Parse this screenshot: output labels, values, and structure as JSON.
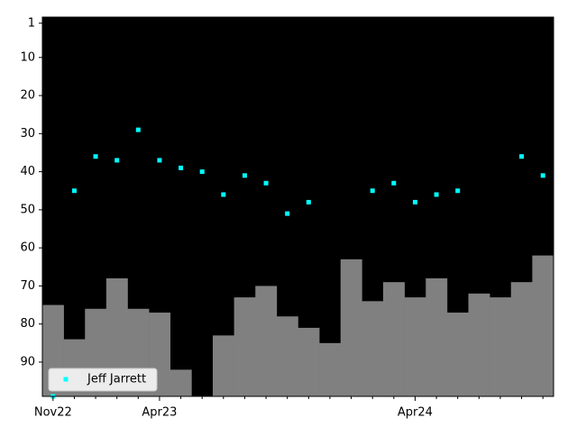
{
  "chart_data": {
    "type": "scatter",
    "categories": [
      "Nov22",
      null,
      null,
      null,
      null,
      "Apr23",
      null,
      null,
      null,
      null,
      null,
      null,
      null,
      null,
      null,
      null,
      null,
      "Apr24",
      null,
      null,
      null,
      null,
      null,
      null
    ],
    "series": [
      {
        "name": "Jeff Jarrett",
        "color": "#00ffff",
        "values": [
          99,
          45,
          36,
          37,
          29,
          37,
          39,
          40,
          46,
          41,
          43,
          51,
          48,
          null,
          null,
          45,
          43,
          48,
          46,
          45,
          null,
          null,
          36,
          41
        ]
      },
      {
        "type": "step-area",
        "color": "#808080",
        "values": [
          75,
          84,
          76,
          68,
          76,
          77,
          92,
          null,
          83,
          73,
          70,
          78,
          81,
          85,
          63,
          74,
          69,
          73,
          68,
          77,
          72,
          73,
          69,
          62
        ]
      }
    ],
    "ylim": [
      99,
      -0.6
    ],
    "yticks": [
      1,
      10,
      20,
      30,
      40,
      50,
      60,
      70,
      80,
      90
    ],
    "background": "#000000",
    "legend": "lower left"
  }
}
